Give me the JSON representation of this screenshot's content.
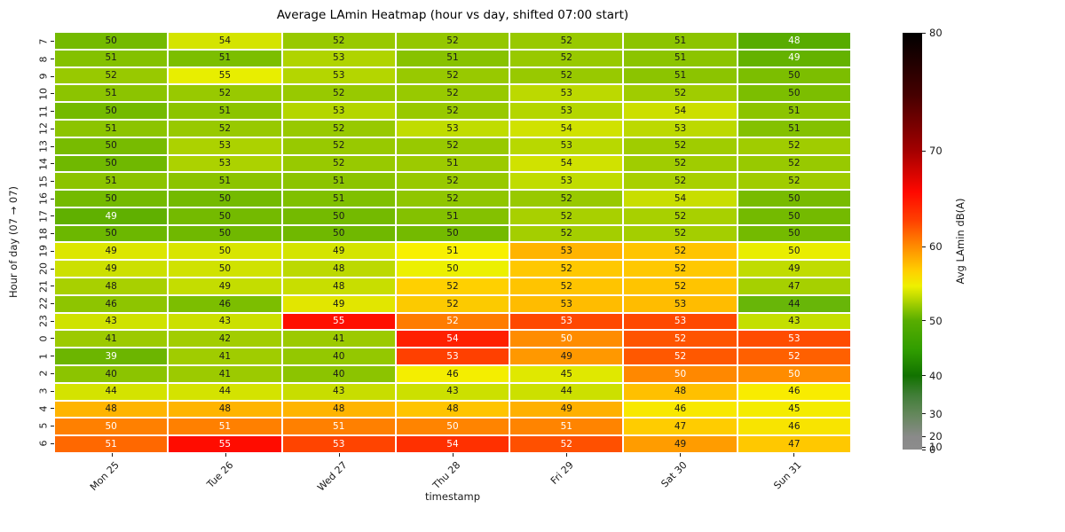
{
  "title": "Average LAmin Heatmap (hour vs day, shifted 07:00 start)",
  "axes": {
    "x_label": "timestamp",
    "y_label": "Hour of day (07 → 07)"
  },
  "colorbar": {
    "label": "Avg LAmin dB(A)",
    "ticks": [
      {
        "label": "80",
        "pos_pct": 0
      },
      {
        "label": "70",
        "pos_pct": 28.4
      },
      {
        "label": "60",
        "pos_pct": 51.3
      },
      {
        "label": "50",
        "pos_pct": 69.1
      },
      {
        "label": "40",
        "pos_pct": 82.3
      },
      {
        "label": "30",
        "pos_pct": 91.4
      },
      {
        "label": "20",
        "pos_pct": 96.9
      },
      {
        "label": "10",
        "pos_pct": 99.4
      },
      {
        "label": "0",
        "pos_pct": 100
      }
    ],
    "gradient_stops": [
      {
        "pct": 0,
        "color": "#8c8c8c"
      },
      {
        "pct": 3,
        "color": "#8a8a8a"
      },
      {
        "pct": 8.6,
        "color": "#63875a"
      },
      {
        "pct": 13,
        "color": "#417e38"
      },
      {
        "pct": 17.7,
        "color": "#127200"
      },
      {
        "pct": 23.7,
        "color": "#2f9c00"
      },
      {
        "pct": 30.9,
        "color": "#58ad00"
      },
      {
        "pct": 33,
        "color": "#7cbe00"
      },
      {
        "pct": 35.7,
        "color": "#b0d400"
      },
      {
        "pct": 39.2,
        "color": "#eef000"
      },
      {
        "pct": 42.8,
        "color": "#ffd000"
      },
      {
        "pct": 48.7,
        "color": "#ff8c00"
      },
      {
        "pct": 55,
        "color": "#ff4000"
      },
      {
        "pct": 61.8,
        "color": "#ff0800"
      },
      {
        "pct": 71.6,
        "color": "#a40000"
      },
      {
        "pct": 85,
        "color": "#460000"
      },
      {
        "pct": 100,
        "color": "#000000"
      }
    ],
    "range": [
      0,
      80
    ]
  },
  "chart_data": {
    "type": "heatmap",
    "title": "Average LAmin Heatmap (hour vs day, shifted 07:00 start)",
    "xlabel": "timestamp",
    "ylabel": "Hour of day (07 → 07)",
    "colorbar_label": "Avg LAmin dB(A)",
    "colorbar_range": [
      0,
      80
    ],
    "x_categories": [
      "Mon 25",
      "Tue 26",
      "Wed 27",
      "Thu 28",
      "Fri 29",
      "Sat 30",
      "Sun 31"
    ],
    "y_categories": [
      "7",
      "8",
      "9",
      "10",
      "11",
      "12",
      "13",
      "14",
      "15",
      "16",
      "17",
      "18",
      "19",
      "20",
      "21",
      "22",
      "23",
      "0",
      "1",
      "2",
      "3",
      "4",
      "5",
      "6"
    ],
    "values": [
      [
        50,
        54,
        52,
        52,
        52,
        51,
        48
      ],
      [
        51,
        51,
        53,
        51,
        52,
        51,
        49
      ],
      [
        52,
        55,
        53,
        52,
        52,
        51,
        50
      ],
      [
        51,
        52,
        52,
        52,
        53,
        52,
        50
      ],
      [
        50,
        51,
        53,
        52,
        53,
        54,
        51
      ],
      [
        51,
        52,
        52,
        53,
        54,
        53,
        51
      ],
      [
        50,
        53,
        52,
        52,
        53,
        52,
        52
      ],
      [
        50,
        53,
        52,
        51,
        54,
        52,
        52
      ],
      [
        51,
        51,
        51,
        52,
        53,
        52,
        52
      ],
      [
        50,
        50,
        51,
        52,
        52,
        54,
        50
      ],
      [
        49,
        50,
        50,
        51,
        52,
        52,
        50
      ],
      [
        50,
        50,
        50,
        50,
        52,
        52,
        50
      ],
      [
        49,
        50,
        49,
        51,
        53,
        52,
        50
      ],
      [
        49,
        50,
        48,
        50,
        52,
        52,
        49
      ],
      [
        48,
        49,
        48,
        52,
        52,
        52,
        47
      ],
      [
        46,
        46,
        49,
        52,
        53,
        53,
        44
      ],
      [
        43,
        43,
        55,
        52,
        53,
        53,
        43
      ],
      [
        41,
        42,
        41,
        54,
        50,
        52,
        53
      ],
      [
        39,
        41,
        40,
        53,
        49,
        52,
        52
      ],
      [
        40,
        41,
        40,
        46,
        45,
        50,
        50
      ],
      [
        44,
        44,
        43,
        43,
        44,
        48,
        46
      ],
      [
        48,
        48,
        48,
        48,
        49,
        46,
        45
      ],
      [
        50,
        51,
        51,
        50,
        51,
        47,
        46
      ],
      [
        51,
        55,
        53,
        54,
        52,
        49,
        47
      ]
    ],
    "cell_colors": [
      [
        "#74ba00",
        "#d4e400",
        "#98c900",
        "#94c700",
        "#98c900",
        "#8cc400",
        "#58ac00"
      ],
      [
        "#84c100",
        "#7cbe00",
        "#b0d400",
        "#88c200",
        "#98c900",
        "#8cc400",
        "#64b200"
      ],
      [
        "#98c900",
        "#e8ee00",
        "#b4d600",
        "#98c900",
        "#98c900",
        "#8cc400",
        "#7cbe00"
      ],
      [
        "#8cc400",
        "#98c900",
        "#98c900",
        "#98c900",
        "#bcd900",
        "#a0cc00",
        "#7cbe00"
      ],
      [
        "#74ba00",
        "#8cc400",
        "#b4d600",
        "#98c900",
        "#b4d600",
        "#ccdf00",
        "#8cc400"
      ],
      [
        "#8cc400",
        "#98c900",
        "#98c900",
        "#c0dc00",
        "#d0e200",
        "#bcd900",
        "#84c100"
      ],
      [
        "#78bb00",
        "#acd200",
        "#98c900",
        "#98c900",
        "#b8d800",
        "#a0cc00",
        "#a0cc00"
      ],
      [
        "#70b800",
        "#acd200",
        "#98c900",
        "#9cca00",
        "#d0e200",
        "#a0cc00",
        "#98c900"
      ],
      [
        "#8cc400",
        "#8cc400",
        "#8cc400",
        "#98c900",
        "#c0dc00",
        "#a8d000",
        "#a0cc00"
      ],
      [
        "#74ba00",
        "#74ba00",
        "#80c000",
        "#90c600",
        "#98c900",
        "#c8de00",
        "#78bb00"
      ],
      [
        "#60b000",
        "#74ba00",
        "#74ba00",
        "#84c100",
        "#a8d000",
        "#a8d000",
        "#74ba00"
      ],
      [
        "#6cb700",
        "#70b800",
        "#70b800",
        "#74ba00",
        "#a4ce00",
        "#a4ce00",
        "#74ba00"
      ],
      [
        "#dce600",
        "#d8e500",
        "#d4e400",
        "#f8f000",
        "#ffb400",
        "#ffc400",
        "#e9ed00"
      ],
      [
        "#cce000",
        "#d0e200",
        "#bcd900",
        "#ecf000",
        "#ffc800",
        "#ffc800",
        "#c0dc00"
      ],
      [
        "#a8d000",
        "#c4dd00",
        "#c8de00",
        "#ffd000",
        "#ffc400",
        "#ffc400",
        "#a6d000"
      ],
      [
        "#8ec500",
        "#7cbe00",
        "#e2e600",
        "#fcca00",
        "#ffbc00",
        "#ffbc00",
        "#68b608"
      ],
      [
        "#cfe200",
        "#cbe000",
        "#ff0f00",
        "#ff7c00",
        "#ff4800",
        "#ff4800",
        "#c4df00"
      ],
      [
        "#9cca00",
        "#a2cd00",
        "#9cca00",
        "#ff2000",
        "#ff8c00",
        "#ff5400",
        "#ff4c00"
      ],
      [
        "#6cb500",
        "#a0cc00",
        "#94c800",
        "#ff4000",
        "#ff9800",
        "#ff5800",
        "#ff6000"
      ],
      [
        "#8cc400",
        "#9cca00",
        "#8cc400",
        "#f4ee00",
        "#e0e800",
        "#ff8800",
        "#ff8c00"
      ],
      [
        "#d4e300",
        "#d4e300",
        "#c8dd00",
        "#cce000",
        "#cce000",
        "#ffc000",
        "#f8ec00"
      ],
      [
        "#ffb400",
        "#ffb400",
        "#ffb400",
        "#ffc400",
        "#ffb000",
        "#f8e800",
        "#f4ec00"
      ],
      [
        "#ff8000",
        "#ff8000",
        "#ff8000",
        "#ff8400",
        "#ff8400",
        "#ffcc00",
        "#f8e400"
      ],
      [
        "#ff6800",
        "#ff0c00",
        "#ff4400",
        "#ff3000",
        "#ff5000",
        "#ff9c00",
        "#ffc800"
      ]
    ],
    "annot_text_colors": [
      [
        "d",
        "d",
        "d",
        "d",
        "d",
        "d",
        "w"
      ],
      [
        "d",
        "d",
        "d",
        "d",
        "d",
        "d",
        "w"
      ],
      [
        "d",
        "d",
        "d",
        "d",
        "d",
        "d",
        "d"
      ],
      [
        "d",
        "d",
        "d",
        "d",
        "d",
        "d",
        "d"
      ],
      [
        "d",
        "d",
        "d",
        "d",
        "d",
        "d",
        "d"
      ],
      [
        "d",
        "d",
        "d",
        "d",
        "d",
        "d",
        "d"
      ],
      [
        "d",
        "d",
        "d",
        "d",
        "d",
        "d",
        "d"
      ],
      [
        "d",
        "d",
        "d",
        "d",
        "d",
        "d",
        "d"
      ],
      [
        "d",
        "d",
        "d",
        "d",
        "d",
        "d",
        "d"
      ],
      [
        "d",
        "d",
        "d",
        "d",
        "d",
        "d",
        "d"
      ],
      [
        "w",
        "d",
        "d",
        "d",
        "d",
        "d",
        "d"
      ],
      [
        "d",
        "d",
        "d",
        "d",
        "d",
        "d",
        "d"
      ],
      [
        "d",
        "d",
        "d",
        "d",
        "d",
        "d",
        "d"
      ],
      [
        "d",
        "d",
        "d",
        "d",
        "d",
        "d",
        "d"
      ],
      [
        "d",
        "d",
        "d",
        "d",
        "d",
        "d",
        "d"
      ],
      [
        "d",
        "d",
        "d",
        "d",
        "d",
        "d",
        "d"
      ],
      [
        "d",
        "d",
        "w",
        "w",
        "w",
        "w",
        "d"
      ],
      [
        "d",
        "d",
        "d",
        "w",
        "w",
        "w",
        "w"
      ],
      [
        "w",
        "d",
        "d",
        "w",
        "d",
        "w",
        "w"
      ],
      [
        "d",
        "d",
        "d",
        "d",
        "d",
        "w",
        "w"
      ],
      [
        "d",
        "d",
        "d",
        "d",
        "d",
        "d",
        "d"
      ],
      [
        "d",
        "d",
        "d",
        "d",
        "d",
        "d",
        "d"
      ],
      [
        "w",
        "w",
        "w",
        "w",
        "w",
        "d",
        "d"
      ],
      [
        "w",
        "w",
        "w",
        "w",
        "w",
        "d",
        "d"
      ]
    ]
  },
  "colors": {
    "annot_dark": "#1a1a1a",
    "annot_light": "#ffffff",
    "tick_color": "#1a1a1a",
    "background": "#ffffff"
  }
}
